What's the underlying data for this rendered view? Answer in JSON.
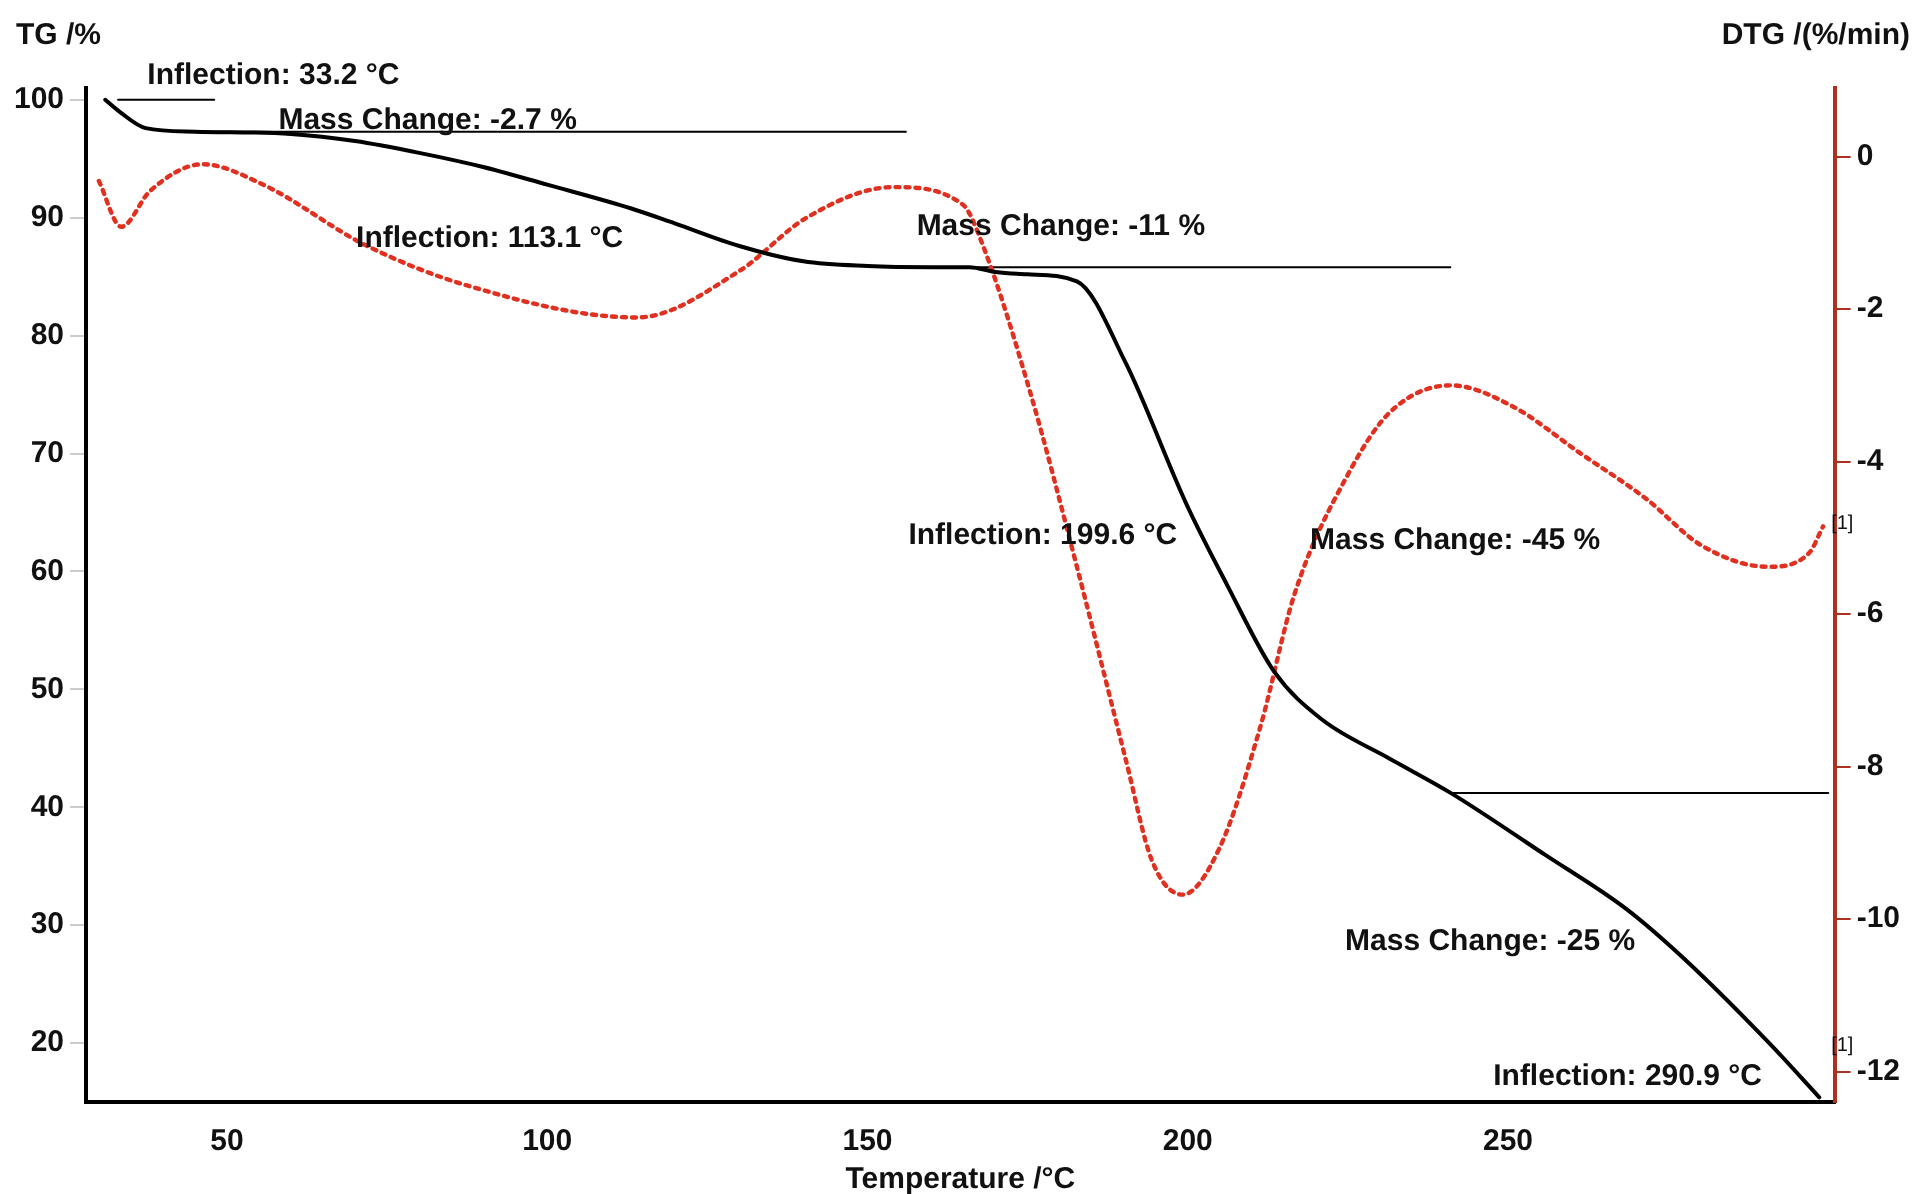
{
  "chart_data": {
    "type": "line",
    "xlabel": "Temperature /°C",
    "ylabel": "TG /%",
    "y2label": "DTG /(%/min)",
    "xlim": [
      28,
      301
    ],
    "xticks": [
      50,
      100,
      150,
      200,
      250
    ],
    "ylim": [
      15,
      101
    ],
    "yticks": [
      20,
      30,
      40,
      50,
      60,
      70,
      80,
      90,
      100
    ],
    "y2lim": [
      -12.4,
      0.9
    ],
    "y2ticks": [
      0,
      -2,
      -4,
      -6,
      -8,
      -10,
      -12
    ],
    "grid": false,
    "legend": false,
    "marker": "none",
    "series": [
      {
        "color": "#000000",
        "line_style": "solid",
        "x": [
          31,
          33.2,
          37.3,
          45,
          60,
          70,
          80,
          90,
          100,
          113,
          120,
          130,
          140,
          150,
          160,
          165.9,
          170,
          175,
          182.7,
          190.3,
          199.8,
          206.2,
          213.5,
          220.8,
          231.6,
          241.1,
          255.7,
          268.4,
          277,
          290.6,
          298.6
        ],
        "values": [
          100,
          99,
          97.6,
          97.3,
          97.1,
          96.5,
          95.5,
          94.3,
          92.8,
          90.8,
          89.5,
          87.6,
          86.3,
          85.9,
          85.8,
          85.8,
          85.4,
          85.2,
          84.6,
          77.7,
          65.7,
          58.8,
          51.5,
          47.5,
          44.1,
          41.2,
          36,
          31.4,
          27.4,
          20.1,
          15.4
        ]
      },
      {
        "color": "#e03020",
        "line_style": "dotted",
        "axis": "y2",
        "x": [
          30,
          33.5,
          38,
          46.2,
          55.7,
          71.6,
          87.5,
          114,
          130,
          140.5,
          154,
          164.9,
          168,
          175.4,
          182.7,
          190.3,
          194.4,
          199.2,
          204.9,
          211.3,
          216.7,
          225.2,
          231.6,
          241.1,
          250.6,
          261.1,
          271.6,
          280.2,
          290.6,
          297,
          299.2
        ],
        "values": [
          -0.32,
          -0.92,
          -0.45,
          -0.1,
          -0.37,
          -1.16,
          -1.69,
          -2.11,
          -1.5,
          -0.8,
          -0.4,
          -0.63,
          -1.16,
          -3.09,
          -5.38,
          -7.9,
          -9.23,
          -9.68,
          -9.08,
          -7.49,
          -5.73,
          -4.14,
          -3.35,
          -3,
          -3.27,
          -3.88,
          -4.49,
          -5.1,
          -5.38,
          -5.2,
          -4.85
        ]
      },
      {
        "color": "#000000",
        "line_style": "solid",
        "x": [
          33,
          48
        ],
        "values": [
          100,
          100
        ]
      },
      {
        "color": "#000000",
        "line_style": "solid",
        "x": [
          45,
          156
        ],
        "values": [
          97.3,
          97.3
        ]
      },
      {
        "color": "#000000",
        "line_style": "solid",
        "x": [
          156,
          241
        ],
        "values": [
          85.8,
          85.8
        ]
      },
      {
        "color": "#000000",
        "line_style": "solid",
        "x": [
          241,
          300
        ],
        "values": [
          41.2,
          41.2
        ]
      }
    ],
    "annotations": [
      {
        "text": "Inflection: 33.2 °C",
        "x": 33.2,
        "y": 99
      },
      "Mass Change: -2.7 %",
      {
        "text": "Inflection: 113.1 °C",
        "x": 113.1,
        "y": 90.9
      },
      "Mass Change: -11 %",
      {
        "text": "Inflection: 199.6 °C",
        "x": 199.6,
        "y": 65.7
      },
      "Mass Change: -45 %",
      "Mass Change: -25 %",
      {
        "text": "Inflection: 290.9 °C",
        "x": 290.9,
        "y": 19.8
      },
      "[1]",
      "[1]"
    ]
  }
}
